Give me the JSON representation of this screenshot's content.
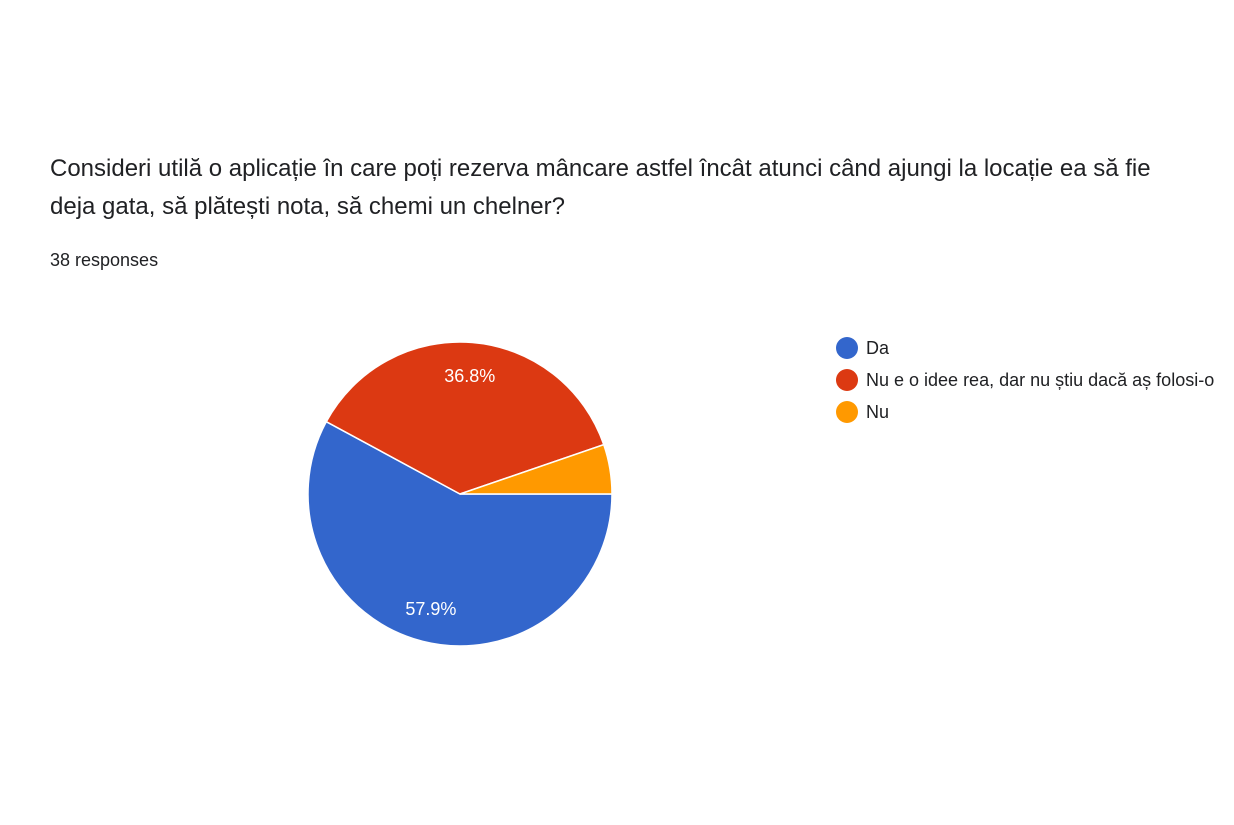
{
  "question": {
    "title": "Consideri utilă o aplicație în care poți rezerva mâncare astfel încât atunci când ajungi la locație ea să fie deja gata, să plătești nota, să chemi un chelner?",
    "responses_label": "38 responses"
  },
  "chart_data": {
    "type": "pie",
    "total_responses": 38,
    "slices": [
      {
        "label": "Da",
        "count": 22,
        "percent": 57.9,
        "percent_label": "57.9%",
        "color": "#3366cc"
      },
      {
        "label": "Nu e o idee rea, dar nu știu dacă aș folosi-o",
        "count": 14,
        "percent": 36.8,
        "percent_label": "36.8%",
        "color": "#dc3912"
      },
      {
        "label": "Nu",
        "count": 2,
        "percent": 5.3,
        "percent_label": "",
        "color": "#ff9900"
      }
    ],
    "legend_position": "right"
  }
}
